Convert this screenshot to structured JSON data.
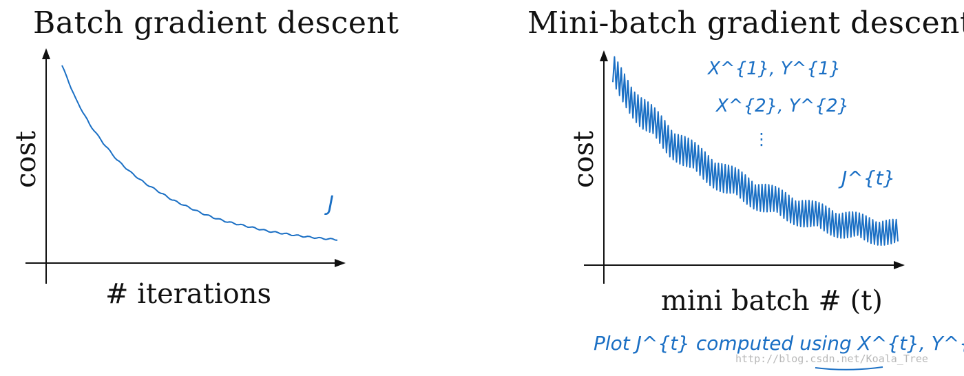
{
  "chart_data": [
    {
      "type": "line",
      "title": "Batch gradient descent",
      "xlabel": "# iterations",
      "ylabel": "cost",
      "annotation": "J",
      "series": [
        {
          "name": "J",
          "color": "#1a6fc4",
          "x": [
            0,
            5,
            10,
            15,
            20,
            25,
            30,
            35,
            40,
            45,
            50,
            55,
            60,
            65,
            70,
            75,
            80,
            85,
            90,
            95,
            100
          ],
          "values": [
            100,
            84,
            72,
            63,
            55,
            49,
            44,
            40,
            36,
            33,
            30,
            27.5,
            25.5,
            24,
            22.5,
            21,
            20,
            19,
            18.2,
            17.5,
            17
          ]
        }
      ]
    },
    {
      "type": "line",
      "title": "Mini-batch gradient descent",
      "xlabel": "mini batch # (t)",
      "ylabel": "cost",
      "annotation": "J^{t}",
      "series": [
        {
          "name": "J^{t}",
          "color": "#1a6fc4",
          "noisy": true,
          "x": [
            0,
            10,
            20,
            30,
            40,
            50,
            60,
            70,
            80,
            90,
            100
          ],
          "values": [
            100,
            80,
            66,
            55,
            46,
            39,
            33,
            28,
            24,
            21,
            19
          ]
        }
      ]
    }
  ],
  "handwritten": {
    "x1y1": "X^{1}, Y^{1}",
    "x2y2": "X^{2}, Y^{2}",
    "dots": "⋮",
    "jt": "J^{t}",
    "plot_note": "Plot J^{t} computed using X^{t}, Y^{t}"
  },
  "watermark": "http://blog.csdn.net/Koala_Tree"
}
